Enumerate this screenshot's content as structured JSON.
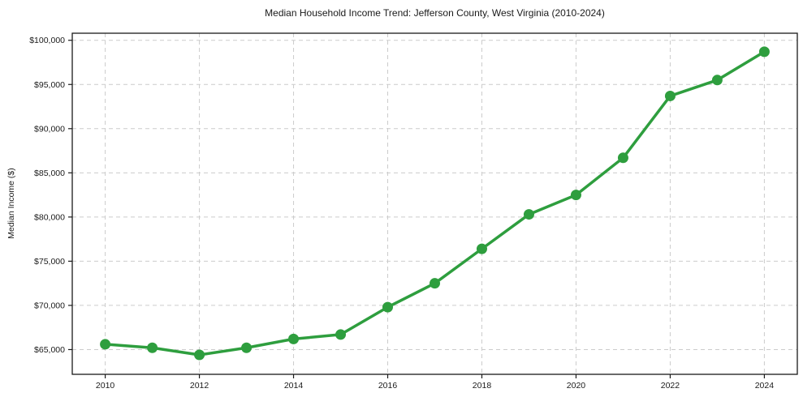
{
  "chart_data": {
    "type": "line",
    "title": "Median Household Income Trend: Jefferson County, West Virginia (2010-2024)",
    "xlabel": "",
    "ylabel": "Median Income ($)",
    "x": [
      2010,
      2011,
      2012,
      2013,
      2014,
      2015,
      2016,
      2017,
      2018,
      2019,
      2020,
      2021,
      2022,
      2023,
      2024
    ],
    "series": [
      {
        "name": "Median Household Income",
        "values": [
          65600,
          65200,
          64400,
          65200,
          66200,
          66700,
          69800,
          72500,
          76400,
          80300,
          82500,
          86700,
          93700,
          95500,
          98700
        ]
      }
    ],
    "xlim": [
      2009.3,
      2024.7
    ],
    "ylim": [
      62200,
      100800
    ],
    "xticks": [
      2010,
      2012,
      2014,
      2016,
      2018,
      2020,
      2022,
      2024
    ],
    "xtick_labels": [
      "2010",
      "2012",
      "2014",
      "2016",
      "2018",
      "2020",
      "2022",
      "2024"
    ],
    "yticks": [
      65000,
      70000,
      75000,
      80000,
      85000,
      90000,
      95000,
      100000
    ],
    "ytick_labels": [
      "$65,000",
      "$70,000",
      "$75,000",
      "$80,000",
      "$85,000",
      "$90,000",
      "$95,000",
      "$100,000"
    ],
    "grid": "dashed",
    "legend": "none",
    "colors": {
      "line": "#2e9e3e",
      "marker": "#2e9e3e",
      "grid": "#cccccc",
      "spine": "#1a1a1a",
      "text": "#1a1a1a",
      "background": "#ffffff"
    }
  }
}
